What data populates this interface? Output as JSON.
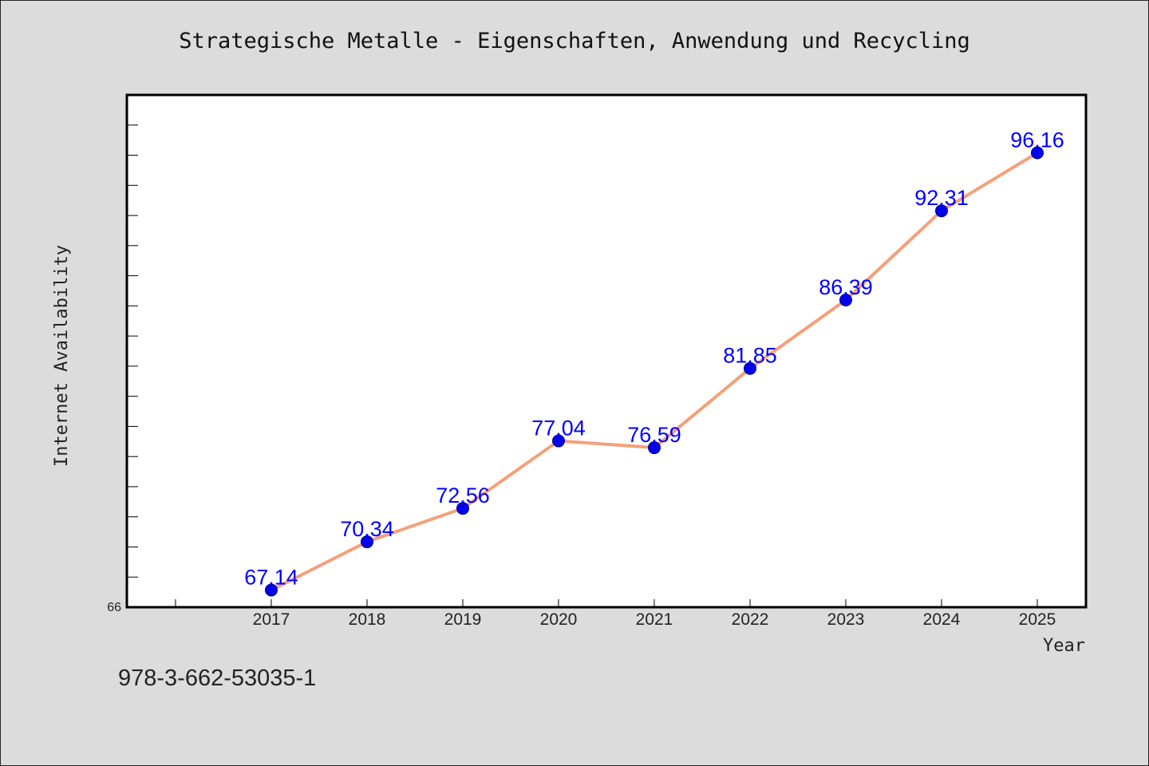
{
  "chart_data": {
    "type": "line",
    "title": "Strategische Metalle - Eigenschaften, Anwendung und Recycling",
    "xlabel": "Year",
    "ylabel": "Internet Availability",
    "categories": [
      "2017",
      "2018",
      "2019",
      "2020",
      "2021",
      "2022",
      "2023",
      "2024",
      "2025"
    ],
    "values": [
      67.14,
      70.34,
      72.56,
      77.04,
      76.59,
      81.85,
      86.39,
      92.31,
      96.16
    ],
    "data_labels": [
      "67.14",
      "70.34",
      "72.56",
      "77.04",
      "76.59",
      "81.85",
      "86.39",
      "92.31",
      "96.16"
    ],
    "ylim": [
      66,
      100
    ],
    "y_min_label": "66",
    "line_color": "#f4a07a",
    "marker_color": "#0000ee",
    "label_color": "#0000ff",
    "legend": "none",
    "grid": false
  },
  "footer": {
    "isbn": "978-3-662-53035-1"
  }
}
